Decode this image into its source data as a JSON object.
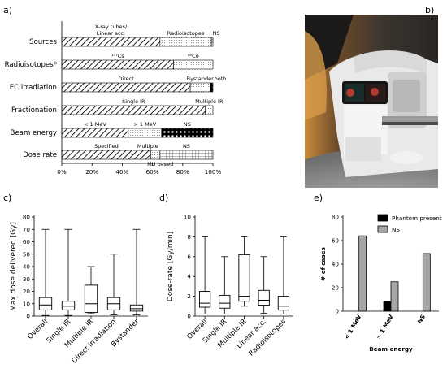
{
  "panels": {
    "a": "a)",
    "b": "b)",
    "c": "c)",
    "d": "d)",
    "e": "e)"
  },
  "chart_data": [
    {
      "panel": "a",
      "type": "bar",
      "orientation": "horizontal",
      "stacked": true,
      "xlim": [
        0,
        100
      ],
      "xticks": [
        "0%",
        "20%",
        "40%",
        "60%",
        "80%",
        "100%"
      ],
      "rows": [
        {
          "category": "Sources",
          "segments": [
            {
              "label": "X-ray tubes/\nLinear acc.",
              "value": 65,
              "pattern": "hatch"
            },
            {
              "label": "Radioisotopes",
              "value": 34,
              "pattern": "dots"
            },
            {
              "label": "NS",
              "value": 1,
              "pattern": "grid"
            }
          ]
        },
        {
          "category": "Radioisotopes",
          "marker": "*",
          "segments": [
            {
              "label": "¹³⁷Cs",
              "value": 74,
              "pattern": "hatch"
            },
            {
              "label": "⁶⁰Co",
              "value": 26,
              "pattern": "dots"
            }
          ]
        },
        {
          "category": "EC irradiation",
          "segments": [
            {
              "label": "Direct",
              "value": 85,
              "pattern": "hatch"
            },
            {
              "label": "Bystander",
              "value": 13,
              "pattern": "dots"
            },
            {
              "label": "both",
              "value": 2,
              "pattern": "check"
            }
          ]
        },
        {
          "category": "Fractionation",
          "segments": [
            {
              "label": "Single IR",
              "value": 95,
              "pattern": "hatch"
            },
            {
              "label": "Multiple IR",
              "value": 5,
              "pattern": "dots"
            }
          ]
        },
        {
          "category": "Beam energy",
          "segments": [
            {
              "label": "< 1 MeV",
              "value": 44,
              "pattern": "hatch"
            },
            {
              "label": "> 1 MeV",
              "value": 22,
              "pattern": "dots"
            },
            {
              "label": "NS",
              "value": 34,
              "pattern": "check"
            }
          ]
        },
        {
          "category": "Dose rate",
          "segments": [
            {
              "label": "Specified",
              "value": 59,
              "pattern": "hatch"
            },
            {
              "label": "Multiple",
              "value": 2,
              "pattern": "dots"
            },
            {
              "label": "MU based",
              "value": 4,
              "pattern": "dots"
            },
            {
              "label": "NS",
              "value": 35,
              "pattern": "grid"
            }
          ]
        }
      ]
    },
    {
      "panel": "c",
      "type": "box",
      "ylabel": "Max dose delivered [Gy]",
      "ylim": [
        0,
        80
      ],
      "yticks": [
        0,
        10,
        20,
        30,
        40,
        50,
        60,
        70,
        80
      ],
      "categories": [
        "Overall",
        "Single IR",
        "Multiple IR",
        "Direct irradiation",
        "Bystander"
      ],
      "boxes": [
        {
          "min": 0.5,
          "q1": 5,
          "median": 9,
          "q3": 15,
          "max": 70
        },
        {
          "min": 0.5,
          "q1": 5,
          "median": 8,
          "q3": 12,
          "max": 70
        },
        {
          "min": 2,
          "q1": 3,
          "median": 10,
          "q3": 25,
          "max": 40
        },
        {
          "min": 1,
          "q1": 5,
          "median": 10,
          "q3": 15,
          "max": 50
        },
        {
          "min": 1,
          "q1": 4,
          "median": 6,
          "q3": 9,
          "max": 70
        }
      ]
    },
    {
      "panel": "d",
      "type": "box",
      "ylabel": "Dose-rate [Gy/min]",
      "ylim": [
        0,
        10
      ],
      "yticks": [
        0,
        2,
        4,
        6,
        8,
        10
      ],
      "categories": [
        "Overall",
        "Single IR",
        "Multiple IR",
        "Linear acc.",
        "Radioisotopes"
      ],
      "boxes": [
        {
          "min": 0.2,
          "q1": 0.9,
          "median": 1.3,
          "q3": 2.5,
          "max": 8
        },
        {
          "min": 0.2,
          "q1": 0.8,
          "median": 1.3,
          "q3": 2.1,
          "max": 6
        },
        {
          "min": 1.0,
          "q1": 1.5,
          "median": 2.0,
          "q3": 6.2,
          "max": 8
        },
        {
          "min": 0.3,
          "q1": 1.1,
          "median": 1.6,
          "q3": 2.6,
          "max": 6
        },
        {
          "min": 0.2,
          "q1": 0.6,
          "median": 1.0,
          "q3": 2.0,
          "max": 8
        }
      ]
    },
    {
      "panel": "e",
      "type": "bar",
      "xlabel": "Beam energy",
      "ylabel": "# of cases",
      "ylim": [
        0,
        80
      ],
      "yticks": [
        0,
        20,
        40,
        60,
        80
      ],
      "categories": [
        "< 1 MeV",
        "> 1 MeV",
        "NS"
      ],
      "series": [
        {
          "name": "Phantom present",
          "values": [
            0,
            8,
            0
          ],
          "color": "#000000"
        },
        {
          "name": "NS",
          "values": [
            64,
            25,
            49
          ],
          "color": "#a6a6a6"
        }
      ],
      "legend": "top-right"
    }
  ]
}
